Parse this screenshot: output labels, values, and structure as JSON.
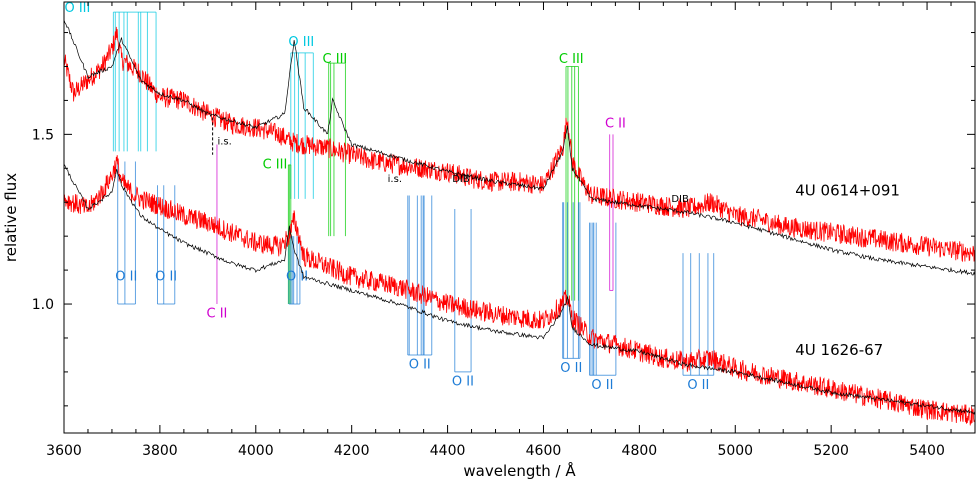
{
  "chart_data": {
    "type": "line",
    "xlabel": "wavelength / Å",
    "ylabel": "relative flux",
    "xlim": [
      3600,
      5500
    ],
    "ylim": [
      0.62,
      1.89
    ],
    "xticks": [
      3600,
      3800,
      4000,
      4200,
      4400,
      4600,
      4800,
      5000,
      5200,
      5400
    ],
    "yticks": [
      1.0,
      1.5
    ],
    "ytick_labels": [
      "1.0",
      "1.5"
    ],
    "grid": false,
    "colors": {
      "observed": "#ff0000",
      "model": "#000000",
      "O III": "#00c8e0",
      "C III": "#00cc00",
      "O II": "#1e7cd6",
      "C II": "#d000d0",
      "misc": "#000000"
    },
    "series": [
      {
        "name": "4U 0614+091",
        "kind": "observed",
        "x": [
          3600,
          3620,
          3650,
          3680,
          3700,
          3710,
          3720,
          3740,
          3760,
          3780,
          3800,
          3850,
          3900,
          3950,
          4000,
          4050,
          4070,
          4100,
          4150,
          4200,
          4250,
          4300,
          4350,
          4400,
          4450,
          4500,
          4550,
          4600,
          4640,
          4650,
          4660,
          4680,
          4700,
          4750,
          4800,
          4850,
          4900,
          4950,
          5000,
          5050,
          5100,
          5150,
          5200,
          5250,
          5300,
          5350,
          5400,
          5450,
          5500
        ],
        "y": [
          1.72,
          1.62,
          1.66,
          1.7,
          1.75,
          1.8,
          1.72,
          1.7,
          1.68,
          1.64,
          1.61,
          1.6,
          1.56,
          1.53,
          1.52,
          1.5,
          1.48,
          1.47,
          1.46,
          1.44,
          1.42,
          1.41,
          1.4,
          1.39,
          1.37,
          1.36,
          1.36,
          1.35,
          1.46,
          1.55,
          1.42,
          1.36,
          1.32,
          1.31,
          1.3,
          1.29,
          1.28,
          1.3,
          1.26,
          1.25,
          1.23,
          1.22,
          1.21,
          1.2,
          1.19,
          1.18,
          1.17,
          1.16,
          1.15
        ]
      },
      {
        "name": "4U 0614+091 model",
        "kind": "model",
        "x": [
          3600,
          3650,
          3700,
          3720,
          3760,
          3800,
          3850,
          3900,
          3950,
          4000,
          4060,
          4070,
          4080,
          4100,
          4150,
          4160,
          4200,
          4300,
          4400,
          4500,
          4600,
          4640,
          4650,
          4660,
          4700,
          4800,
          4900,
          5000,
          5100,
          5200,
          5300,
          5400,
          5500
        ],
        "y": [
          1.84,
          1.67,
          1.7,
          1.78,
          1.66,
          1.62,
          1.6,
          1.56,
          1.54,
          1.52,
          1.56,
          1.67,
          1.78,
          1.58,
          1.5,
          1.6,
          1.47,
          1.43,
          1.39,
          1.36,
          1.34,
          1.45,
          1.52,
          1.4,
          1.31,
          1.29,
          1.27,
          1.24,
          1.2,
          1.16,
          1.13,
          1.11,
          1.09
        ]
      },
      {
        "name": "4U 1626-67",
        "kind": "observed",
        "x": [
          3600,
          3650,
          3680,
          3700,
          3710,
          3720,
          3740,
          3760,
          3800,
          3850,
          3900,
          3950,
          4000,
          4050,
          4070,
          4080,
          4090,
          4100,
          4150,
          4200,
          4300,
          4400,
          4500,
          4550,
          4600,
          4640,
          4650,
          4660,
          4700,
          4750,
          4800,
          4850,
          4900,
          4950,
          5000,
          5100,
          5200,
          5300,
          5400,
          5500
        ],
        "y": [
          1.31,
          1.28,
          1.33,
          1.38,
          1.42,
          1.36,
          1.33,
          1.31,
          1.29,
          1.26,
          1.24,
          1.21,
          1.18,
          1.17,
          1.2,
          1.25,
          1.2,
          1.14,
          1.11,
          1.08,
          1.05,
          1.0,
          0.97,
          0.96,
          0.95,
          1.0,
          1.02,
          0.96,
          0.9,
          0.88,
          0.86,
          0.84,
          0.83,
          0.84,
          0.81,
          0.78,
          0.75,
          0.72,
          0.69,
          0.67
        ]
      },
      {
        "name": "4U 1626-67 model",
        "kind": "model",
        "x": [
          3600,
          3650,
          3700,
          3710,
          3720,
          3760,
          3800,
          3850,
          3900,
          3950,
          4000,
          4060,
          4070,
          4080,
          4100,
          4200,
          4300,
          4400,
          4500,
          4600,
          4640,
          4650,
          4660,
          4700,
          4800,
          4900,
          5000,
          5100,
          5200,
          5300,
          5400,
          5500
        ],
        "y": [
          1.41,
          1.28,
          1.33,
          1.4,
          1.35,
          1.26,
          1.22,
          1.18,
          1.15,
          1.12,
          1.1,
          1.13,
          1.23,
          1.16,
          1.08,
          1.04,
          1.0,
          0.95,
          0.92,
          0.9,
          0.98,
          1.02,
          0.93,
          0.88,
          0.86,
          0.82,
          0.8,
          0.77,
          0.74,
          0.72,
          0.7,
          0.68
        ]
      }
    ],
    "spectrum_labels": [
      {
        "text": "4U 0614+091",
        "x": 5000,
        "y": 1.32
      },
      {
        "text": "4U 1626-67",
        "x": 5000,
        "y": 0.85
      }
    ],
    "line_markers": [
      {
        "ion": "O III",
        "waves": [
          3703,
          3707,
          3715,
          3725,
          3732,
          3755,
          3760,
          3774,
          3792
        ],
        "top": 1.86,
        "bottom": 1.45,
        "label": "O III",
        "label_x": 3628,
        "label_y": 1.86
      },
      {
        "ion": "O III",
        "waves": [
          4073,
          4081,
          4089,
          4103,
          4120
        ],
        "top": 1.74,
        "bottom": 1.31,
        "label": "O III",
        "label_x": 4095,
        "label_y": 1.76
      },
      {
        "ion": "C III",
        "waves": [
          4152,
          4156,
          4163,
          4187
        ],
        "top": 1.71,
        "bottom": 1.2,
        "label": "C III",
        "label_x": 4165,
        "label_y": 1.71
      },
      {
        "ion": "C III",
        "waves": [
          4068,
          4070,
          4073
        ],
        "top": 1.41,
        "bottom": 1.0,
        "label": "C III",
        "label_x": 4040,
        "label_y": 1.4
      },
      {
        "ion": "C III",
        "waves": [
          4647,
          4651,
          4659,
          4665,
          4673
        ],
        "top": 1.7,
        "bottom": 1.01,
        "label": "C III",
        "label_x": 4658,
        "label_y": 1.71
      },
      {
        "ion": "C II",
        "waves": [
          3919
        ],
        "top": 1.47,
        "bottom": 1.0,
        "label": "C II",
        "label_x": 3919,
        "label_y": 0.96
      },
      {
        "ion": "C II",
        "waves": [
          4738,
          4745
        ],
        "top": 1.5,
        "bottom": 1.04,
        "label": "C II",
        "label_x": 4750,
        "label_y": 1.52
      },
      {
        "ion": "O II",
        "waves": [
          3712,
          3727,
          3749
        ],
        "top": 1.42,
        "bottom": 1.0,
        "label": "O II",
        "label_x": 3730,
        "label_y": 1.07
      },
      {
        "ion": "O II",
        "waves": [
          3795,
          3808,
          3831
        ],
        "top": 1.35,
        "bottom": 1.0,
        "label": "O II",
        "label_x": 3813,
        "label_y": 1.07
      },
      {
        "ion": "O II",
        "waves": [
          4069,
          4073,
          4076,
          4079,
          4086,
          4092
        ],
        "top": 1.2,
        "bottom": 1.0,
        "label": "O II",
        "label_x": 4086,
        "label_y": 1.07
      },
      {
        "ion": "O II",
        "waves": [
          4317,
          4320,
          4337,
          4345,
          4349,
          4351,
          4367
        ],
        "top": 1.32,
        "bottom": 0.85,
        "label": "O II",
        "label_x": 4342,
        "label_y": 0.81
      },
      {
        "ion": "O II",
        "waves": [
          4415,
          4449
        ],
        "top": 1.28,
        "bottom": 0.8,
        "label": "O II",
        "label_x": 4432,
        "label_y": 0.76
      },
      {
        "ion": "O II",
        "waves": [
          4640,
          4642,
          4650,
          4662,
          4673,
          4676
        ],
        "top": 1.3,
        "bottom": 0.84,
        "label": "O II",
        "label_x": 4658,
        "label_y": 0.8
      },
      {
        "ion": "O II",
        "waves": [
          4696,
          4699,
          4703,
          4705,
          4710,
          4751
        ],
        "top": 1.24,
        "bottom": 0.79,
        "label": "O II",
        "label_x": 4723,
        "label_y": 0.75
      },
      {
        "ion": "O II",
        "waves": [
          4891,
          4907,
          4925,
          4943,
          4955
        ],
        "top": 1.15,
        "bottom": 0.79,
        "label": "O II",
        "label_x": 4923,
        "label_y": 0.75
      }
    ],
    "annotations": [
      {
        "text": "i.s.",
        "x": 3935,
        "y": 1.47,
        "line_top": 1.55,
        "line_bottom": 1.44
      },
      {
        "text": "i.s.",
        "x": 4290,
        "y": 1.36
      },
      {
        "text": "DIB",
        "x": 4428,
        "y": 1.36
      },
      {
        "text": "DIB",
        "x": 4885,
        "y": 1.3
      }
    ]
  }
}
